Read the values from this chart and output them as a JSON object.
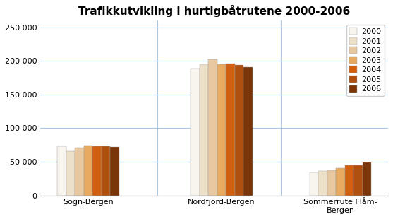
{
  "title": "Trafikkutvikling i hurtigbåtrutene 2000-2006",
  "groups": [
    "Sogn-Bergen",
    "Nordfjord-Bergen",
    "Sommerrute Flåm-\nBergen"
  ],
  "years": [
    "2000",
    "2001",
    "2002",
    "2003",
    "2004",
    "2005",
    "2006"
  ],
  "values": {
    "Sogn-Bergen": [
      73000,
      66000,
      71000,
      74000,
      73000,
      73000,
      72000
    ],
    "Nordfjord-Bergen": [
      189000,
      195000,
      202000,
      195000,
      196000,
      194000,
      191000
    ],
    "Sommerrute": [
      34000,
      36000,
      37000,
      41000,
      45000,
      45000,
      49000
    ]
  },
  "colors": [
    "#f8f4ee",
    "#ede0c8",
    "#e8c8a0",
    "#e8aa60",
    "#d06010",
    "#b05010",
    "#7a3508"
  ],
  "ylim": [
    0,
    260000
  ],
  "yticks": [
    0,
    50000,
    100000,
    150000,
    200000,
    250000
  ],
  "ytick_labels": [
    "0",
    "50 000",
    "100 000",
    "150 000",
    "200 000",
    "250 000"
  ],
  "background_color": "#ffffff",
  "grid_color": "#a8c8e8",
  "bar_edge_color": "#999999",
  "title_fontsize": 11,
  "tick_fontsize": 8,
  "legend_fontsize": 8
}
